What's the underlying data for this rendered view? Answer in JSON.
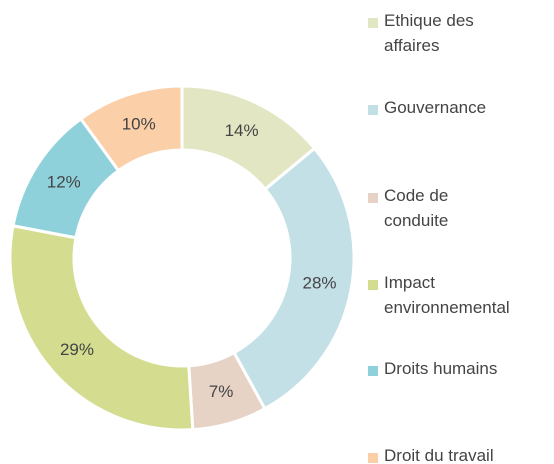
{
  "chart_data": {
    "type": "donut",
    "categories": [
      "Ethique des affaires",
      "Gouvernance",
      "Code de conduite",
      "Impact environnemental",
      "Droits humains",
      "Droit du travail"
    ],
    "values": [
      14,
      28,
      7,
      29,
      12,
      10
    ],
    "value_labels": [
      "14%",
      "28%",
      "7%",
      "29%",
      "12%",
      "10%"
    ],
    "colors": [
      "#e3e6c3",
      "#c3e0e7",
      "#e6d3c5",
      "#d4dd8f",
      "#8fd1db",
      "#fbcfa8"
    ],
    "legend": "right"
  }
}
